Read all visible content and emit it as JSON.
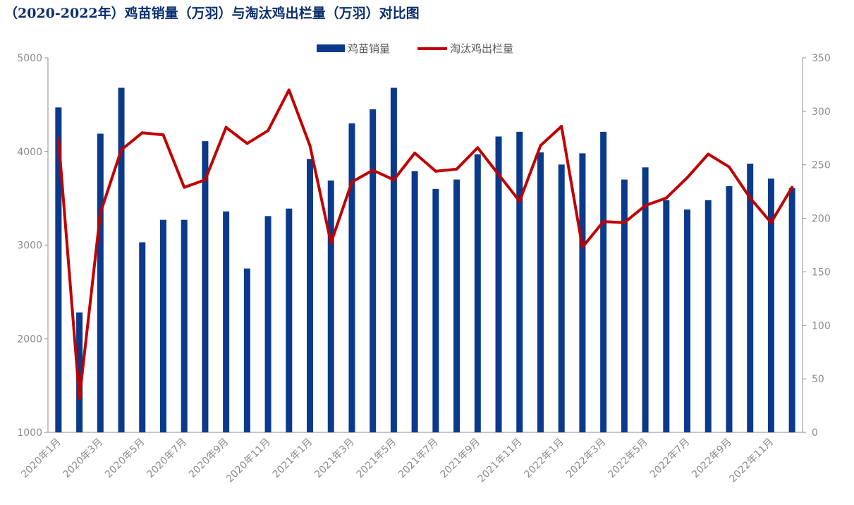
{
  "chart_data": {
    "type": "bar",
    "title": "（2020-2022年）鸡苗销量（万羽）与淘汰鸡出栏量（万羽）对比图",
    "categories": [
      "2020年1月",
      "2020年2月",
      "2020年3月",
      "2020年4月",
      "2020年5月",
      "2020年6月",
      "2020年7月",
      "2020年8月",
      "2020年9月",
      "2020年10月",
      "2020年11月",
      "2020年12月",
      "2021年1月",
      "2021年2月",
      "2021年3月",
      "2021年4月",
      "2021年5月",
      "2021年6月",
      "2021年7月",
      "2021年8月",
      "2021年9月",
      "2021年10月",
      "2021年11月",
      "2021年12月",
      "2022年1月",
      "2022年2月",
      "2022年3月",
      "2022年4月",
      "2022年5月",
      "2022年6月",
      "2022年7月",
      "2022年8月",
      "2022年9月",
      "2022年10月",
      "2022年11月",
      "2022年12月"
    ],
    "tick_labels": [
      "2020年1月",
      "2020年3月",
      "2020年5月",
      "2020年7月",
      "2020年9月",
      "2020年11月",
      "2021年1月",
      "2021年3月",
      "2021年5月",
      "2021年7月",
      "2021年9月",
      "2021年11月",
      "2022年1月",
      "2022年3月",
      "2022年5月",
      "2022年7月",
      "2022年9月",
      "2022年11月"
    ],
    "series": [
      {
        "name": "鸡苗销量",
        "type": "bar",
        "axis": "left",
        "color": "#0a3a8c",
        "values": [
          4470,
          2280,
          4190,
          4680,
          3030,
          3270,
          3270,
          4110,
          3360,
          2750,
          3310,
          3390,
          3920,
          3690,
          4300,
          4450,
          4680,
          3790,
          3600,
          3700,
          3970,
          4160,
          4210,
          3990,
          3860,
          3980,
          4210,
          3700,
          3830,
          3480,
          3380,
          3480,
          3630,
          3870,
          3710,
          3610
        ]
      },
      {
        "name": "淘汰鸡出栏量",
        "type": "line",
        "axis": "right",
        "color": "#c00000",
        "values": [
          275,
          32,
          205,
          264,
          280,
          278,
          229,
          236,
          285,
          270,
          282,
          320,
          268,
          177,
          234,
          245,
          236,
          261,
          244,
          246,
          266,
          241,
          216,
          268,
          286,
          173,
          197,
          196,
          212,
          219,
          238,
          260,
          248,
          219,
          196,
          229
        ]
      }
    ],
    "yaxis_left": {
      "min": 1000,
      "max": 5000,
      "ticks": [
        "1000",
        "2000",
        "3000",
        "4000",
        "5000"
      ]
    },
    "yaxis_right": {
      "min": 0,
      "max": 350,
      "ticks": [
        "0",
        "50",
        "100",
        "150",
        "200",
        "250",
        "300",
        "350"
      ]
    },
    "legend": "top-center",
    "grid": false
  }
}
